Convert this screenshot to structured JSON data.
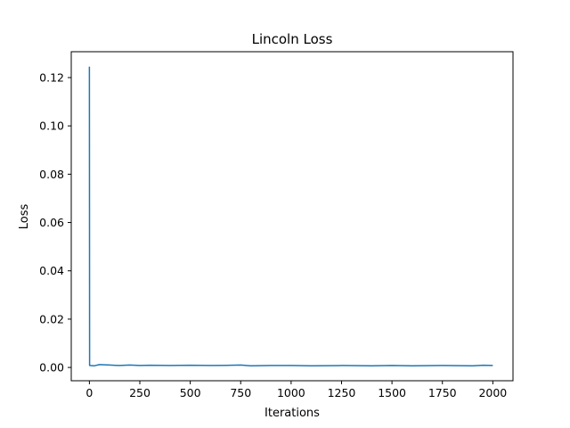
{
  "chart_data": {
    "type": "line",
    "title": "Lincoln Loss",
    "xlabel": "Iterations",
    "ylabel": "Loss",
    "xlim": [
      -90,
      2100
    ],
    "ylim": [
      -0.0055,
      0.1307
    ],
    "xticks": [
      0,
      250,
      500,
      750,
      1000,
      1250,
      1500,
      1750,
      2000
    ],
    "yticks": [
      0.0,
      0.02,
      0.04,
      0.06,
      0.08,
      0.1,
      0.12
    ],
    "ytick_labels": [
      "0.00",
      "0.02",
      "0.04",
      "0.06",
      "0.08",
      "0.10",
      "0.12"
    ],
    "grid": false,
    "series": [
      {
        "color": "#1f77b4",
        "points": [
          [
            0,
            0.1245
          ],
          [
            1,
            0.0008
          ],
          [
            25,
            0.0007
          ],
          [
            50,
            0.0012
          ],
          [
            100,
            0.001
          ],
          [
            150,
            0.0008
          ],
          [
            200,
            0.001
          ],
          [
            250,
            0.0008
          ],
          [
            300,
            0.0009
          ],
          [
            400,
            0.0008
          ],
          [
            500,
            0.0009
          ],
          [
            600,
            0.0008
          ],
          [
            700,
            0.0009
          ],
          [
            750,
            0.001
          ],
          [
            800,
            0.0007
          ],
          [
            900,
            0.0008
          ],
          [
            1000,
            0.0008
          ],
          [
            1100,
            0.0007
          ],
          [
            1250,
            0.0008
          ],
          [
            1400,
            0.0007
          ],
          [
            1500,
            0.0008
          ],
          [
            1600,
            0.0007
          ],
          [
            1750,
            0.0008
          ],
          [
            1900,
            0.0007
          ],
          [
            1950,
            0.0009
          ],
          [
            2000,
            0.0008
          ]
        ]
      }
    ]
  }
}
